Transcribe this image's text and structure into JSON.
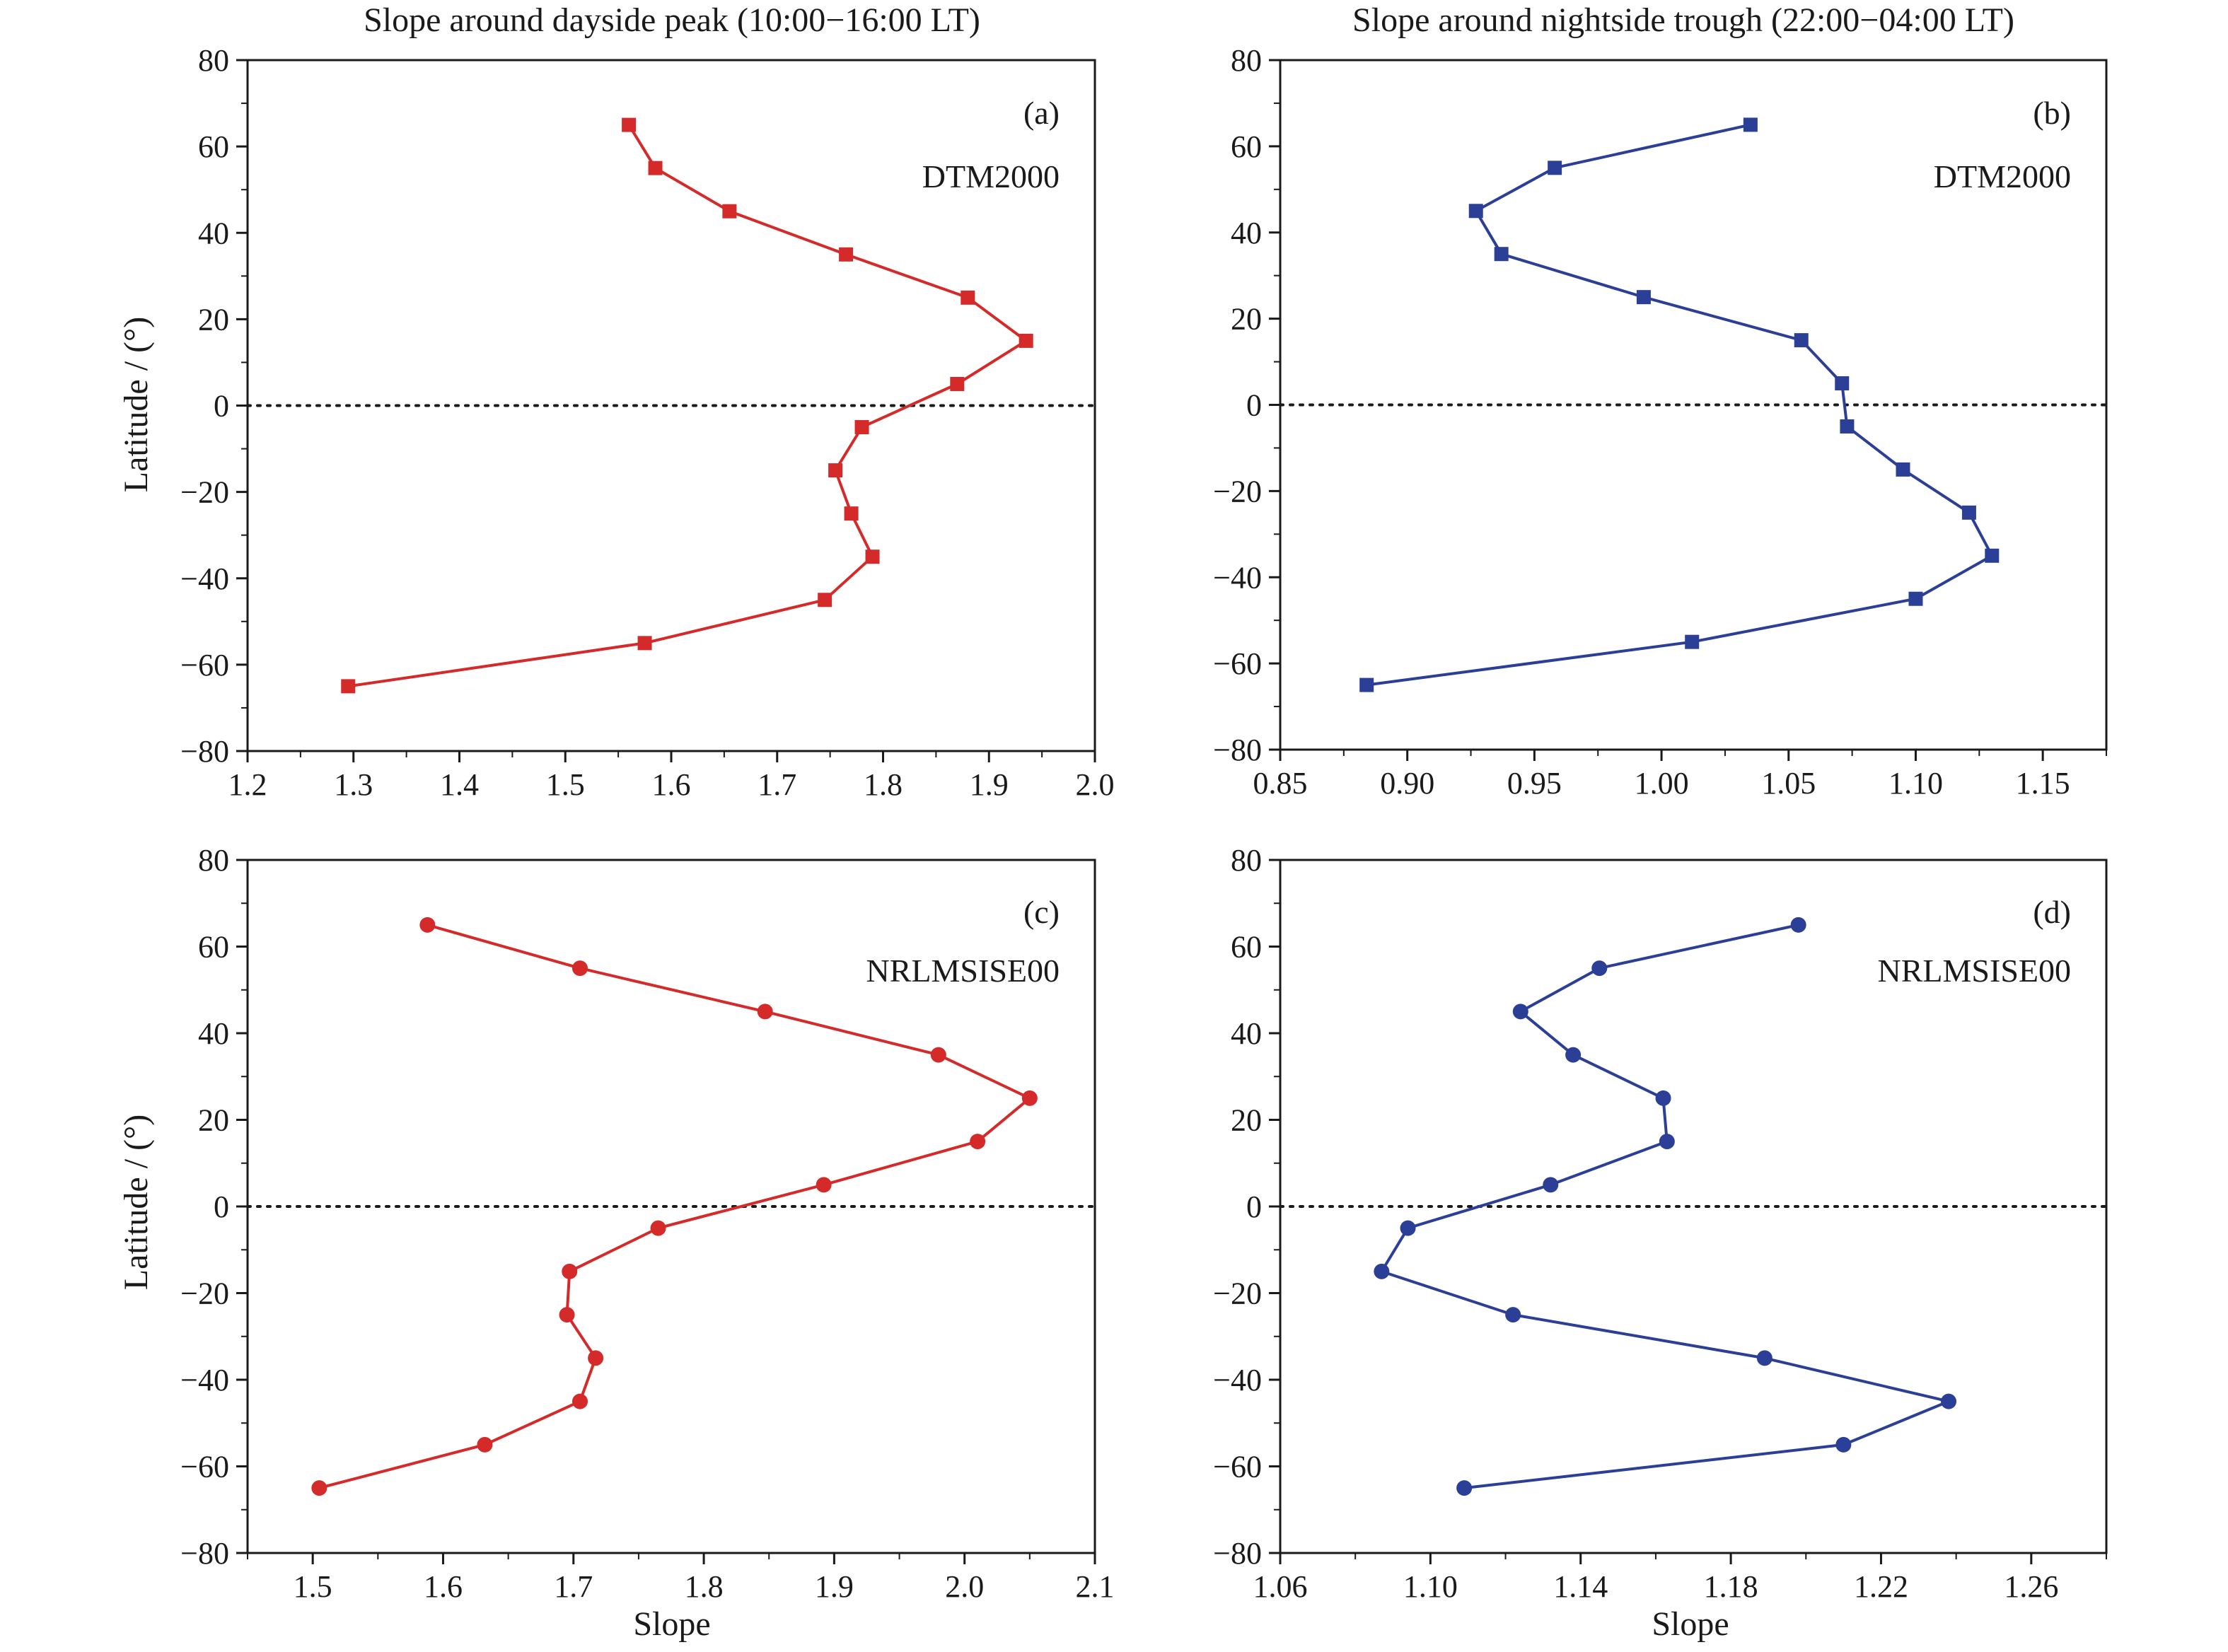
{
  "figure": {
    "column_titles": [
      "Slope around dayside peak (10:00−16:00 LT)",
      "Slope around nightside trough (22:00−04:00 LT)"
    ],
    "y_axis_label": "Latitude / (°)",
    "x_axis_label": "Slope"
  },
  "chart_data": [
    {
      "type": "line",
      "panel": "(a)",
      "model": "DTM2000",
      "color": "#d42a2a",
      "marker": "square",
      "xlim": [
        1.2,
        2.0
      ],
      "ylim": [
        -80,
        80
      ],
      "xticks": [
        "1.2",
        "1.3",
        "1.4",
        "1.5",
        "1.6",
        "1.7",
        "1.8",
        "1.9",
        "2.0"
      ],
      "yticks": [
        "−80",
        "−60",
        "−40",
        "−20",
        "0",
        "20",
        "40",
        "60",
        "80"
      ],
      "x": [
        1.56,
        1.585,
        1.655,
        1.765,
        1.88,
        1.935,
        1.87,
        1.78,
        1.755,
        1.77,
        1.79,
        1.745,
        1.575,
        1.295
      ],
      "y": [
        65,
        55,
        45,
        35,
        25,
        15,
        5,
        -5,
        -15,
        -25,
        -35,
        -45,
        -55,
        -65
      ]
    },
    {
      "type": "line",
      "panel": "(b)",
      "model": "DTM2000",
      "color": "#2b3f96",
      "marker": "square",
      "xlim": [
        0.85,
        1.175
      ],
      "ylim": [
        -80,
        80
      ],
      "xticks": [
        "0.85",
        "0.90",
        "0.95",
        "1.00",
        "1.05",
        "1.10",
        "1.15"
      ],
      "yticks": [
        "−80",
        "−60",
        "−40",
        "−20",
        "0",
        "20",
        "40",
        "60",
        "80"
      ],
      "x": [
        1.035,
        0.958,
        0.927,
        0.937,
        0.993,
        1.055,
        1.071,
        1.073,
        1.095,
        1.121,
        1.13,
        1.1,
        1.012,
        0.884
      ],
      "y": [
        65,
        55,
        45,
        35,
        25,
        15,
        5,
        -5,
        -15,
        -25,
        -35,
        -45,
        -55,
        -65
      ]
    },
    {
      "type": "line",
      "panel": "(c)",
      "model": "NRLMSISE00",
      "color": "#d42a2a",
      "marker": "circle",
      "xlim": [
        1.45,
        2.1
      ],
      "ylim": [
        -80,
        80
      ],
      "xticks": [
        "1.5",
        "1.6",
        "1.7",
        "1.8",
        "1.9",
        "2.0",
        "2.1"
      ],
      "yticks": [
        "−80",
        "−60",
        "−40",
        "−20",
        "0",
        "20",
        "40",
        "60",
        "80"
      ],
      "x": [
        1.588,
        1.705,
        1.847,
        1.98,
        2.05,
        2.01,
        1.892,
        1.765,
        1.697,
        1.695,
        1.717,
        1.705,
        1.632,
        1.505
      ],
      "y": [
        65,
        55,
        45,
        35,
        25,
        15,
        5,
        -5,
        -15,
        -25,
        -35,
        -45,
        -55,
        -65
      ]
    },
    {
      "type": "line",
      "panel": "(d)",
      "model": "NRLMSISE00",
      "color": "#2b3f96",
      "marker": "circle",
      "xlim": [
        1.06,
        1.28
      ],
      "ylim": [
        -80,
        80
      ],
      "xticks": [
        "1.06",
        "1.10",
        "1.14",
        "1.18",
        "1.22",
        "1.26"
      ],
      "yticks": [
        "−80",
        "−60",
        "−40",
        "−20",
        "0",
        "20",
        "40",
        "60",
        "80"
      ],
      "x": [
        1.198,
        1.145,
        1.124,
        1.138,
        1.162,
        1.163,
        1.132,
        1.094,
        1.087,
        1.122,
        1.189,
        1.238,
        1.21,
        1.109
      ],
      "y": [
        65,
        55,
        45,
        35,
        25,
        15,
        5,
        -5,
        -15,
        -25,
        -35,
        -45,
        -55,
        -65
      ]
    }
  ]
}
